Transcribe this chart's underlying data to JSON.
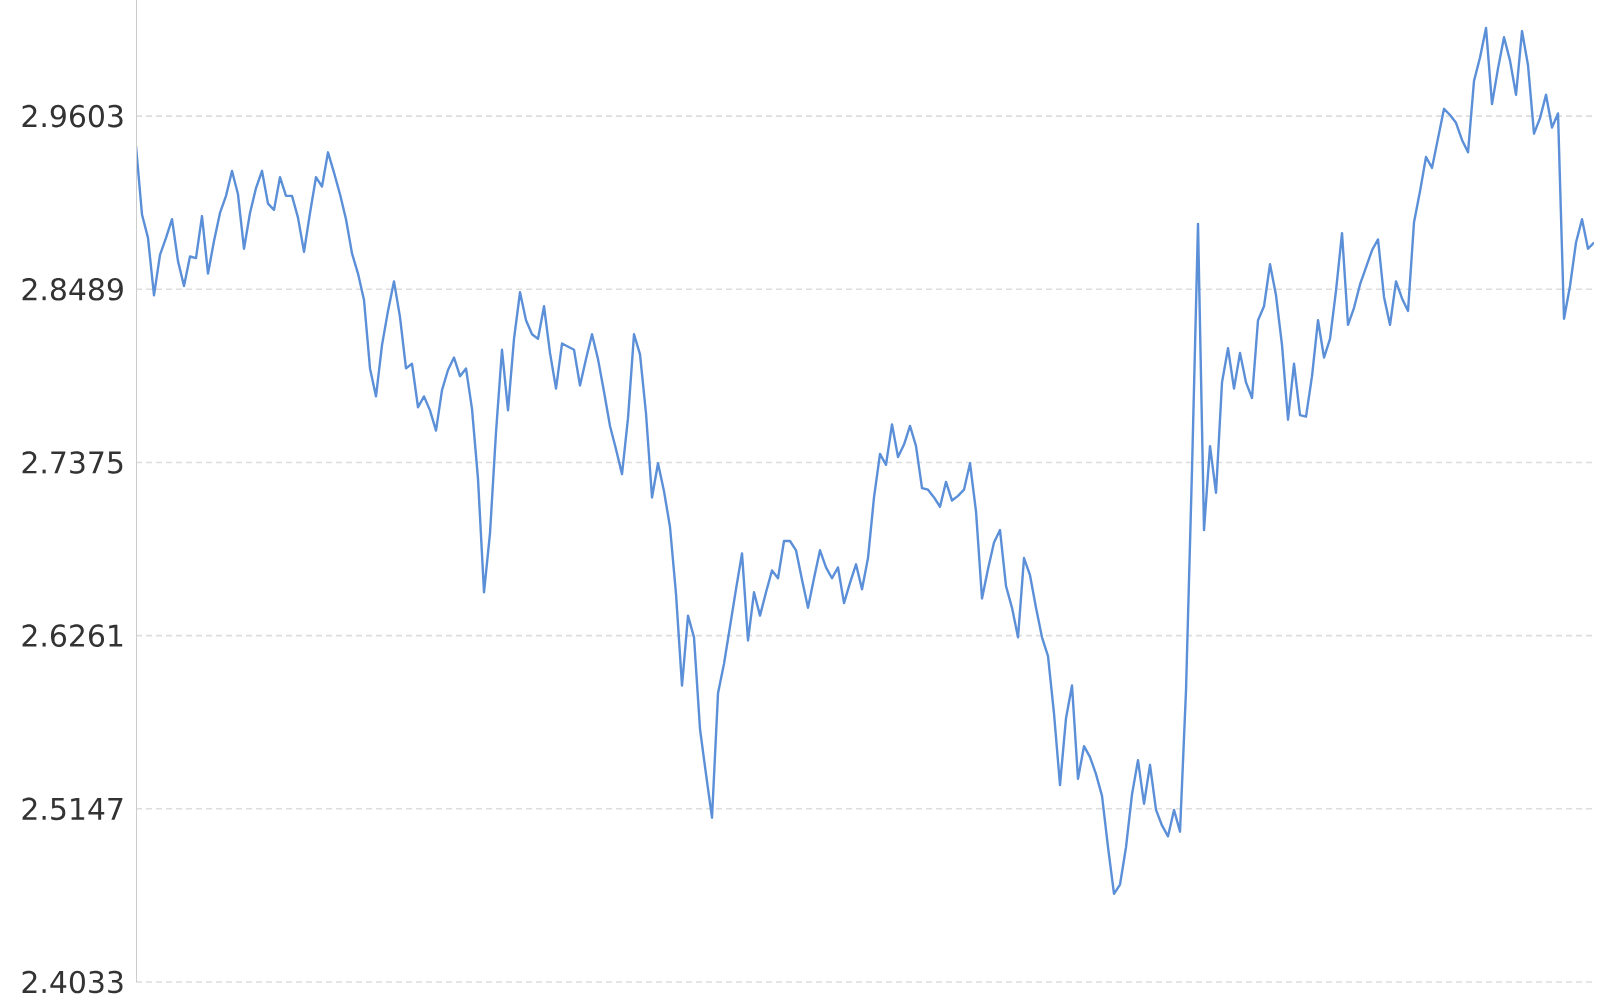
{
  "chart_data": {
    "type": "line",
    "categories": [
      null,
      null,
      null,
      null,
      null,
      null,
      null,
      null,
      null,
      null,
      null,
      null,
      null,
      null,
      null,
      null,
      null,
      null,
      null,
      null,
      null,
      null,
      null,
      null,
      null,
      null,
      null,
      null,
      null,
      null,
      null,
      null,
      null,
      null,
      null,
      null,
      null,
      null,
      null,
      null,
      null,
      null,
      null,
      null,
      null,
      null,
      null,
      null,
      null,
      null,
      null,
      null,
      null,
      null,
      null,
      null,
      null,
      null,
      null,
      null,
      null,
      null,
      null,
      null,
      null,
      null,
      null,
      null,
      null,
      null,
      null,
      null,
      null,
      null,
      null,
      null,
      null,
      null,
      null,
      null,
      null,
      null,
      null,
      null,
      null,
      null,
      null,
      null,
      null,
      null,
      null,
      null,
      null,
      null,
      null,
      null,
      null,
      null,
      null,
      null,
      null,
      null,
      null,
      null,
      null,
      null,
      null,
      null,
      null,
      null,
      null,
      null,
      null,
      null,
      null,
      null,
      null,
      null,
      null,
      null,
      null,
      null,
      null,
      null,
      null,
      null,
      null,
      null,
      null,
      null,
      null,
      null,
      null,
      null,
      null,
      null,
      null,
      null,
      null,
      null,
      null,
      null,
      null,
      null,
      null,
      null,
      null,
      null,
      null,
      null,
      null,
      null,
      null,
      null,
      null,
      null,
      null,
      null,
      null,
      null,
      null,
      null,
      null,
      null,
      null,
      null,
      null,
      null,
      null,
      null,
      null,
      null,
      null,
      null,
      null,
      null,
      null,
      null,
      null,
      null,
      null,
      null,
      null,
      null,
      null,
      null,
      null,
      null,
      null,
      null,
      null,
      null,
      null,
      null,
      null,
      null,
      null,
      null,
      null,
      null,
      null,
      null,
      null,
      null,
      null,
      null,
      null,
      null,
      null,
      null,
      null,
      null,
      null,
      null,
      null,
      null,
      null,
      null,
      null,
      null,
      null,
      null,
      null,
      null,
      null,
      null,
      null,
      null,
      null,
      null,
      null,
      null,
      null,
      null,
      null,
      null,
      null,
      null,
      null,
      null,
      null,
      null,
      null,
      null
    ],
    "series": [
      {
        "color": "#5b8fd8",
        "values": [
          2.941,
          2.897,
          2.882,
          2.845,
          2.871,
          2.882,
          2.894,
          2.867,
          2.851,
          2.87,
          2.869,
          2.896,
          2.859,
          2.88,
          2.898,
          2.909,
          2.925,
          2.91,
          2.875,
          2.898,
          2.914,
          2.925,
          2.904,
          2.9,
          2.921,
          2.909,
          2.909,
          2.895,
          2.873,
          2.898,
          2.921,
          2.915,
          2.937,
          2.924,
          2.91,
          2.894,
          2.872,
          2.859,
          2.842,
          2.798,
          2.78,
          2.813,
          2.835,
          2.854,
          2.831,
          2.798,
          2.801,
          2.773,
          2.78,
          2.771,
          2.758,
          2.784,
          2.797,
          2.805,
          2.793,
          2.798,
          2.772,
          2.727,
          2.654,
          2.692,
          2.757,
          2.81,
          2.771,
          2.817,
          2.847,
          2.829,
          2.82,
          2.817,
          2.838,
          2.808,
          2.785,
          2.814,
          2.812,
          2.81,
          2.787,
          2.804,
          2.82,
          2.804,
          2.783,
          2.761,
          2.746,
          2.73,
          2.766,
          2.82,
          2.807,
          2.769,
          2.715,
          2.737,
          2.719,
          2.696,
          2.653,
          2.594,
          2.639,
          2.625,
          2.566,
          2.537,
          2.509,
          2.589,
          2.608,
          2.632,
          2.656,
          2.679,
          2.623,
          2.654,
          2.639,
          2.654,
          2.668,
          2.663,
          2.687,
          2.687,
          2.681,
          2.662,
          2.644,
          2.663,
          2.681,
          2.67,
          2.663,
          2.67,
          2.647,
          2.66,
          2.672,
          2.656,
          2.676,
          2.715,
          2.743,
          2.736,
          2.762,
          2.741,
          2.749,
          2.761,
          2.748,
          2.721,
          2.72,
          2.715,
          2.709,
          2.725,
          2.713,
          2.716,
          2.72,
          2.737,
          2.706,
          2.65,
          2.669,
          2.686,
          2.694,
          2.658,
          2.644,
          2.625,
          2.676,
          2.665,
          2.644,
          2.625,
          2.613,
          2.576,
          2.53,
          2.573,
          2.594,
          2.534,
          2.555,
          2.548,
          2.537,
          2.523,
          2.49,
          2.46,
          2.466,
          2.49,
          2.524,
          2.546,
          2.518,
          2.543,
          2.514,
          2.504,
          2.497,
          2.514,
          2.5,
          2.591,
          2.733,
          2.891,
          2.694,
          2.748,
          2.718,
          2.789,
          2.811,
          2.785,
          2.808,
          2.789,
          2.779,
          2.829,
          2.838,
          2.865,
          2.845,
          2.813,
          2.765,
          2.801,
          2.768,
          2.767,
          2.793,
          2.829,
          2.805,
          2.817,
          2.848,
          2.885,
          2.826,
          2.837,
          2.852,
          2.863,
          2.874,
          2.881,
          2.844,
          2.826,
          2.854,
          2.843,
          2.835,
          2.892,
          2.912,
          2.934,
          2.927,
          2.946,
          2.965,
          2.961,
          2.956,
          2.945,
          2.937,
          2.983,
          2.998,
          3.017,
          2.968,
          2.991,
          3.011,
          2.996,
          2.974,
          3.015,
          2.993,
          2.949,
          2.959,
          2.974,
          2.953,
          2.962,
          2.83,
          2.851,
          2.879,
          2.894,
          2.875,
          2.879
        ]
      }
    ],
    "ylim": [
      2.4033,
      3.035
    ],
    "yticks": [
      2.9603,
      2.8489,
      2.7375,
      2.6261,
      2.5147,
      2.4033
    ],
    "grid": "y",
    "tick_labels": "y"
  }
}
